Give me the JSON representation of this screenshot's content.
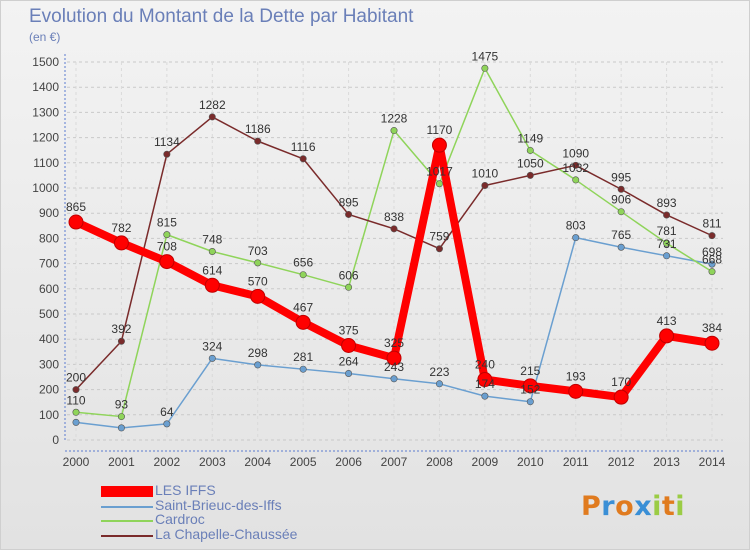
{
  "header": {
    "title": "Evolution du Montant de la Dette par Habitant",
    "subtitle": "(en €)"
  },
  "logo": {
    "letters": [
      "P",
      "r",
      "o",
      "x",
      "i",
      "t",
      "i"
    ],
    "colors": [
      "#e07b1f",
      "#3a8fd6",
      "#e07b1f",
      "#3a8fd6",
      "#9bcc45",
      "#e07b1f",
      "#9bcc45"
    ]
  },
  "chart_data": {
    "type": "line",
    "title": "Evolution du Montant de la Dette par Habitant",
    "subtitle": "(en €)",
    "xlabel": "",
    "ylabel": "",
    "x": [
      "2000",
      "2001",
      "2002",
      "2003",
      "2004",
      "2005",
      "2006",
      "2007",
      "2008",
      "2009",
      "2010",
      "2011",
      "2012",
      "2013",
      "2014"
    ],
    "ylim": [
      0,
      1500
    ],
    "yticks": [
      "0",
      "100",
      "200",
      "300",
      "400",
      "500",
      "600",
      "700",
      "800",
      "900",
      "1000",
      "1100",
      "1200",
      "1300",
      "1400",
      "1500"
    ],
    "grid": true,
    "legend_position": "bottom-left",
    "series": [
      {
        "name": "LES IFFS",
        "color": "#ff0000",
        "emphasis": true,
        "values": [
          865,
          782,
          708,
          614,
          570,
          467,
          375,
          325,
          1170,
          240,
          215,
          193,
          170,
          413,
          384
        ],
        "labels": [
          "865",
          "782",
          "708",
          "614",
          "570",
          "467",
          "375",
          "325",
          "1170",
          "240",
          "215",
          "193",
          "170",
          "413",
          "384"
        ]
      },
      {
        "name": "Saint-Brieuc-des-Iffs",
        "color": "#6a9fd0",
        "values": [
          70,
          48,
          64,
          324,
          298,
          281,
          264,
          243,
          223,
          174,
          152,
          803,
          765,
          731,
          698
        ],
        "labels": [
          "",
          "",
          "64",
          "324",
          "298",
          "281",
          "264",
          "243",
          "223",
          "174",
          "152",
          "803",
          "765",
          "731",
          "698"
        ]
      },
      {
        "name": "Cardroc",
        "color": "#8fd45a",
        "values": [
          110,
          93,
          815,
          748,
          703,
          656,
          606,
          1228,
          1017,
          1475,
          1149,
          1032,
          906,
          781,
          668
        ],
        "labels": [
          "110",
          "93",
          "815",
          "748",
          "703",
          "656",
          "606",
          "1228",
          "1017",
          "1475",
          "1149",
          "1032",
          "906",
          "781",
          "668"
        ]
      },
      {
        "name": "La Chapelle-Chaussée",
        "color": "#7a2b2b",
        "values": [
          200,
          392,
          1134,
          1282,
          1186,
          1116,
          895,
          838,
          759,
          1010,
          1050,
          1090,
          995,
          893,
          811
        ],
        "labels": [
          "200",
          "392",
          "1134",
          "1282",
          "1186",
          "1116",
          "895",
          "838",
          "759",
          "1010",
          "1050",
          "1090",
          "995",
          "893",
          "811"
        ]
      }
    ]
  }
}
